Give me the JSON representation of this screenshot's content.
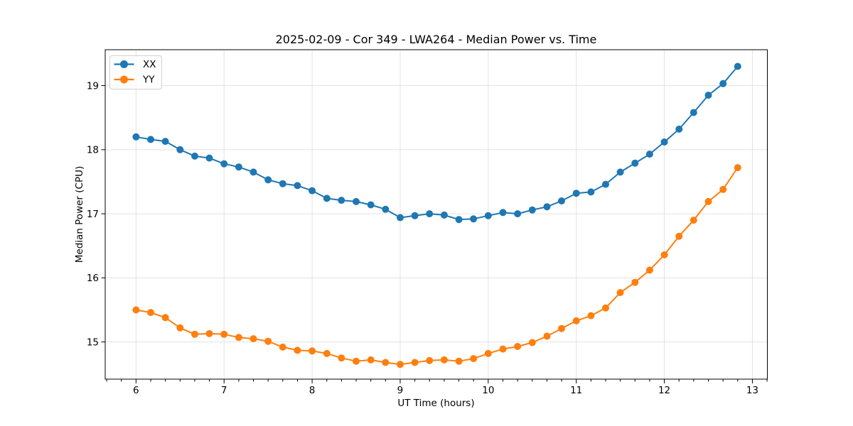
{
  "chart_data": {
    "type": "line",
    "title": "2025-02-09 - Cor 349 - LWA264 - Median Power vs. Time",
    "xlabel": "UT Time (hours)",
    "ylabel": "Median Power (CPU)",
    "x": [
      6.0,
      6.167,
      6.333,
      6.5,
      6.667,
      6.833,
      7.0,
      7.167,
      7.333,
      7.5,
      7.667,
      7.833,
      8.0,
      8.167,
      8.333,
      8.5,
      8.667,
      8.833,
      9.0,
      9.167,
      9.333,
      9.5,
      9.667,
      9.833,
      10.0,
      10.167,
      10.333,
      10.5,
      10.667,
      10.833,
      11.0,
      11.167,
      11.333,
      11.5,
      11.667,
      11.833,
      12.0,
      12.167,
      12.333,
      12.5,
      12.667,
      12.833
    ],
    "series": [
      {
        "name": "XX",
        "color": "#1f77b4",
        "values": [
          18.2,
          18.16,
          18.13,
          18.0,
          17.9,
          17.87,
          17.78,
          17.73,
          17.65,
          17.53,
          17.47,
          17.44,
          17.36,
          17.24,
          17.21,
          17.19,
          17.14,
          17.07,
          16.94,
          16.97,
          17.0,
          16.98,
          16.91,
          16.92,
          16.97,
          17.02,
          17.0,
          17.06,
          17.11,
          17.2,
          17.32,
          17.34,
          17.46,
          17.65,
          17.79,
          17.93,
          18.12,
          18.32,
          18.58,
          18.85,
          19.03,
          19.3
        ]
      },
      {
        "name": "YY",
        "color": "#ff7f0e",
        "values": [
          15.5,
          15.46,
          15.38,
          15.22,
          15.12,
          15.13,
          15.12,
          15.07,
          15.05,
          15.01,
          14.92,
          14.87,
          14.86,
          14.82,
          14.75,
          14.7,
          14.72,
          14.68,
          14.65,
          14.68,
          14.71,
          14.72,
          14.7,
          14.74,
          14.82,
          14.89,
          14.93,
          14.99,
          15.09,
          15.21,
          15.33,
          15.41,
          15.53,
          15.77,
          15.93,
          16.12,
          16.36,
          16.65,
          16.9,
          17.19,
          17.38,
          17.72
        ]
      }
    ],
    "xticks": [
      6,
      7,
      8,
      9,
      10,
      11,
      12,
      13
    ],
    "yticks": [
      15,
      16,
      17,
      18,
      19
    ],
    "x_minor_step": 0.1667,
    "xlim": [
      5.65,
      13.17
    ],
    "ylim": [
      14.42,
      19.56
    ],
    "grid": true,
    "grid_color": "#e2e2e2",
    "legend_position": "upper left",
    "marker": "o",
    "background": "#ffffff",
    "spine_color": "#000000"
  }
}
